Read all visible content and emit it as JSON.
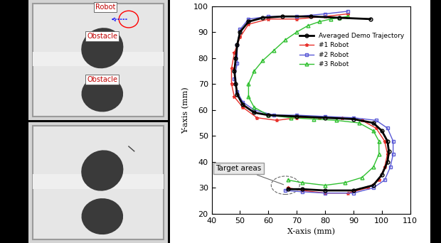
{
  "photo_labels": [
    "Robot",
    "Obstacle",
    "Obstacle"
  ],
  "chart_data": {
    "type": "line",
    "xlabel": "X-axis (mm)",
    "ylabel": "Y-axis (mm)",
    "xlim": [
      40,
      110
    ],
    "xticks": [
      40,
      50,
      60,
      70,
      80,
      90,
      100,
      110
    ],
    "ylim": [
      20,
      100
    ],
    "yticks": [
      20,
      30,
      40,
      50,
      60,
      70,
      80,
      90,
      100
    ],
    "grid": false,
    "legend": "upper right",
    "annotations": [
      {
        "text": "Target areas",
        "x": 66,
        "y": 31
      }
    ],
    "series": [
      {
        "name": "Averaged Demo Trajectory",
        "color": "#000000",
        "marker": "circle",
        "line_style": "solid",
        "x": [
          96,
          85,
          75,
          65,
          58,
          53,
          50,
          49,
          48.5,
          48,
          48.5,
          49,
          51,
          55,
          60,
          70,
          80,
          90,
          97,
          100,
          102,
          102.5,
          102,
          100,
          97,
          90,
          80,
          72,
          67
        ],
        "values": [
          95,
          95.5,
          96,
          96,
          95.5,
          94,
          90,
          85,
          80,
          75,
          70,
          66,
          62,
          59,
          58,
          57.5,
          57,
          56.5,
          55,
          52,
          48,
          44,
          40,
          35,
          31,
          29,
          29,
          29.5,
          29.5
        ]
      },
      {
        "name": "#1 Robot",
        "color": "#e8302a",
        "marker": "star",
        "line_style": "solid",
        "x": [
          88,
          80,
          70,
          60,
          53,
          50,
          48,
          47,
          47,
          48,
          51,
          56,
          63,
          70,
          78,
          86,
          93,
          98,
          101,
          102,
          101,
          99,
          95,
          88,
          80,
          72,
          67
        ],
        "values": [
          97,
          96,
          95,
          95,
          93,
          88,
          82,
          76,
          70,
          65,
          61,
          57,
          56,
          57,
          57,
          57,
          56,
          53,
          48,
          43,
          38,
          33,
          30,
          28,
          28,
          29,
          30
        ]
      },
      {
        "name": "#2 Robot",
        "color": "#5a5ad6",
        "marker": "square",
        "line_style": "solid",
        "x": [
          88,
          80,
          70,
          60,
          53,
          50,
          49,
          49,
          48,
          49,
          51,
          55,
          62,
          70,
          80,
          90,
          98,
          102,
          104,
          104,
          103,
          101,
          97,
          90,
          80,
          72,
          66
        ],
        "values": [
          98,
          97,
          96,
          96,
          95,
          91,
          85,
          78,
          72,
          67,
          63,
          60,
          58,
          58,
          57.5,
          57,
          56,
          53,
          48,
          43,
          38,
          33,
          30,
          28,
          28,
          28.5,
          29
        ]
      },
      {
        "name": "#3 Robot",
        "color": "#2fc02f",
        "marker": "triangle",
        "line_style": "solid",
        "x": [
          88,
          85,
          82,
          78,
          74,
          70,
          66,
          62,
          58,
          55,
          53,
          53,
          55,
          60,
          68,
          76,
          84,
          92,
          97,
          99,
          99,
          97,
          93,
          87,
          80,
          72,
          67
        ],
        "values": [
          96,
          95.5,
          95,
          94,
          92.5,
          90,
          87,
          83,
          79,
          75,
          70,
          65,
          61,
          58,
          57,
          56.5,
          56,
          55,
          52,
          48,
          43,
          38,
          34,
          32,
          31,
          32,
          33
        ]
      }
    ]
  }
}
